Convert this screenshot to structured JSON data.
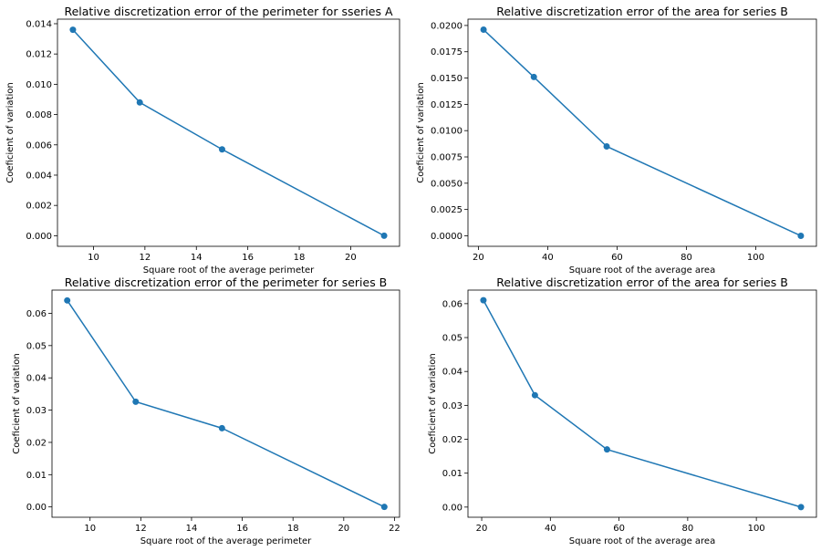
{
  "chart_data": [
    {
      "type": "line",
      "title": "Relative discretization error of the perimeter for sseries A",
      "xlabel": "Square root of the average perimeter",
      "ylabel": "Coeficient of variation",
      "x": [
        9.2,
        11.8,
        15.0,
        21.3
      ],
      "y": [
        0.0136,
        0.0088,
        0.0057,
        0.0
      ],
      "xlim": [
        8.6,
        21.9
      ],
      "ylim": [
        -0.0007,
        0.0143
      ],
      "xticks": [
        10,
        12,
        14,
        16,
        18,
        20
      ],
      "xtick_labels": [
        "10",
        "12",
        "14",
        "16",
        "18",
        "20"
      ],
      "yticks": [
        0.0,
        0.002,
        0.004,
        0.006,
        0.008,
        0.01,
        0.012,
        0.014
      ],
      "ytick_labels": [
        "0.000",
        "0.002",
        "0.004",
        "0.006",
        "0.008",
        "0.010",
        "0.012",
        "0.014"
      ],
      "grid": false,
      "color": "#1f77b4"
    },
    {
      "type": "line",
      "title": "Relative discretization error of the area for series B",
      "xlabel": "Square root of the average area",
      "ylabel": "Coeficient of variation",
      "x": [
        21.5,
        36.0,
        57.0,
        113.0
      ],
      "y": [
        0.0196,
        0.0151,
        0.0085,
        0.0
      ],
      "xlim": [
        17.0,
        117.5
      ],
      "ylim": [
        -0.001,
        0.0206
      ],
      "xticks": [
        20,
        40,
        60,
        80,
        100
      ],
      "xtick_labels": [
        "20",
        "40",
        "60",
        "80",
        "100"
      ],
      "yticks": [
        0.0,
        0.0025,
        0.005,
        0.0075,
        0.01,
        0.0125,
        0.015,
        0.0175,
        0.02
      ],
      "ytick_labels": [
        "0.0000",
        "0.0025",
        "0.0050",
        "0.0075",
        "0.0100",
        "0.0125",
        "0.0150",
        "0.0175",
        "0.0200"
      ],
      "grid": false,
      "color": "#1f77b4"
    },
    {
      "type": "line",
      "title": "Relative discretization error of the perimeter for series B",
      "xlabel": "Square root of the average perimeter",
      "ylabel": "Coeficient of variation",
      "x": [
        9.1,
        11.8,
        15.2,
        21.6
      ],
      "y": [
        0.064,
        0.0326,
        0.0244,
        0.0
      ],
      "xlim": [
        8.5,
        22.2
      ],
      "ylim": [
        -0.0032,
        0.0672
      ],
      "xticks": [
        10,
        12,
        14,
        16,
        18,
        20,
        22
      ],
      "xtick_labels": [
        "10",
        "12",
        "14",
        "16",
        "18",
        "20",
        "22"
      ],
      "yticks": [
        0.0,
        0.01,
        0.02,
        0.03,
        0.04,
        0.05,
        0.06
      ],
      "ytick_labels": [
        "0.00",
        "0.01",
        "0.02",
        "0.03",
        "0.04",
        "0.05",
        "0.06"
      ],
      "grid": false,
      "color": "#1f77b4"
    },
    {
      "type": "line",
      "title": "Relative discretization error of the area for series B",
      "xlabel": "Square root of the average area",
      "ylabel": "Coeficient of variation",
      "x": [
        20.5,
        35.5,
        56.5,
        113.0
      ],
      "y": [
        0.061,
        0.033,
        0.017,
        0.0
      ],
      "xlim": [
        16.0,
        117.5
      ],
      "ylim": [
        -0.003,
        0.064
      ],
      "xticks": [
        20,
        40,
        60,
        80,
        100
      ],
      "xtick_labels": [
        "20",
        "40",
        "60",
        "80",
        "100"
      ],
      "yticks": [
        0.0,
        0.01,
        0.02,
        0.03,
        0.04,
        0.05,
        0.06
      ],
      "ytick_labels": [
        "0.00",
        "0.01",
        "0.02",
        "0.03",
        "0.04",
        "0.05",
        "0.06"
      ],
      "grid": false,
      "color": "#1f77b4"
    }
  ]
}
